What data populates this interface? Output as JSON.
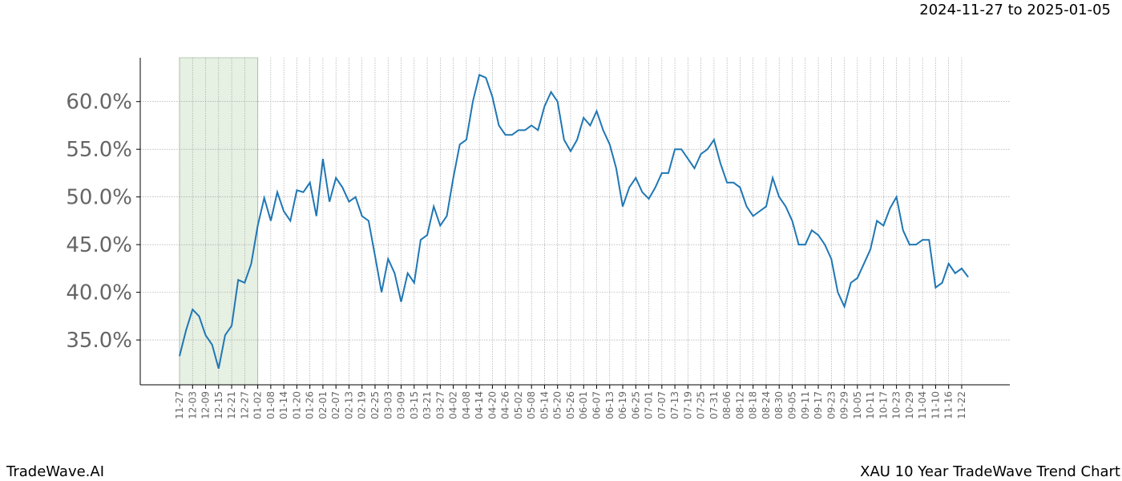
{
  "chart_data": {
    "type": "line",
    "title": "2024-11-27 to 2025-01-05",
    "footer_left": "TradeWave.AI",
    "footer_right": "XAU 10 Year TradeWave Trend Chart",
    "categories": [
      "11-27",
      null,
      "12-03",
      null,
      "12-09",
      null,
      "12-15",
      null,
      "12-21",
      null,
      "12-27",
      null,
      "01-02",
      null,
      "01-08",
      null,
      "01-14",
      null,
      "01-20",
      null,
      "01-26",
      null,
      "02-01",
      null,
      "02-07",
      null,
      "02-13",
      null,
      "02-19",
      null,
      "02-25",
      null,
      "03-03",
      null,
      "03-09",
      null,
      "03-15",
      null,
      "03-21",
      null,
      "03-27",
      null,
      "04-02",
      null,
      "04-08",
      null,
      "04-14",
      null,
      "04-20",
      null,
      "04-26",
      null,
      "05-02",
      null,
      "05-08",
      null,
      "05-14",
      null,
      "05-20",
      null,
      "05-26",
      null,
      "06-01",
      null,
      "06-07",
      null,
      "06-13",
      null,
      "06-19",
      null,
      "06-25",
      null,
      "07-01",
      null,
      "07-07",
      null,
      "07-13",
      null,
      "07-19",
      null,
      "07-25",
      null,
      "07-31",
      null,
      "08-06",
      null,
      "08-12",
      null,
      "08-18",
      null,
      "08-24",
      null,
      "08-30",
      null,
      "09-05",
      null,
      "09-11",
      null,
      "09-17",
      null,
      "09-23",
      null,
      "09-29",
      null,
      "10-05",
      null,
      "10-11",
      null,
      "10-17",
      null,
      "10-23",
      null,
      "10-29",
      null,
      "11-04",
      null,
      "11-10",
      null,
      "11-16",
      null,
      "11-22",
      null
    ],
    "values": [
      33.3,
      36,
      38.2,
      37.5,
      35.5,
      34.5,
      32,
      35.5,
      36.5,
      41.3,
      41,
      43,
      47,
      49.9,
      47.5,
      50.5,
      48.5,
      47.5,
      50.7,
      50.5,
      51.5,
      48,
      54,
      49.5,
      52,
      51,
      49.5,
      50,
      48,
      47.5,
      43.8,
      40,
      43.5,
      42,
      39,
      42,
      41,
      45.5,
      46,
      49,
      47,
      48,
      52,
      55.5,
      56,
      60,
      62.8,
      62.5,
      60.5,
      57.5,
      56.5,
      56.5,
      57,
      57,
      57.5,
      57,
      59.5,
      61,
      60,
      56,
      54.8,
      56,
      58.3,
      57.5,
      59,
      57,
      55.5,
      53,
      49,
      51,
      52,
      50.5,
      49.8,
      51,
      52.5,
      52.5,
      55,
      55,
      54,
      53,
      54.5,
      55,
      56,
      53.5,
      51.5,
      51.5,
      51,
      49,
      48,
      48.5,
      49,
      52,
      50,
      49,
      47.5,
      45,
      45,
      46.5,
      46,
      45,
      43.5,
      40,
      38.5,
      41,
      41.5,
      43,
      44.5,
      47.5,
      47,
      48.8,
      50,
      46.5,
      45,
      45,
      45.5,
      45.5,
      40.5,
      41,
      43,
      42,
      42.5,
      41.6
    ],
    "color": "#1f77b4",
    "shade": [
      "11-27",
      "01-02"
    ],
    "shade_color": "#e6f0e3",
    "ylim": [
      30.3,
      64.6
    ],
    "yticks": [
      {
        "value": 35,
        "label": "35.0%"
      },
      {
        "value": 40,
        "label": "40.0%"
      },
      {
        "value": 45,
        "label": "45.0%"
      },
      {
        "value": 50,
        "label": "50.0%"
      },
      {
        "value": 55,
        "label": "55.0%"
      },
      {
        "value": 60,
        "label": "60.0%"
      }
    ],
    "grid": true
  }
}
